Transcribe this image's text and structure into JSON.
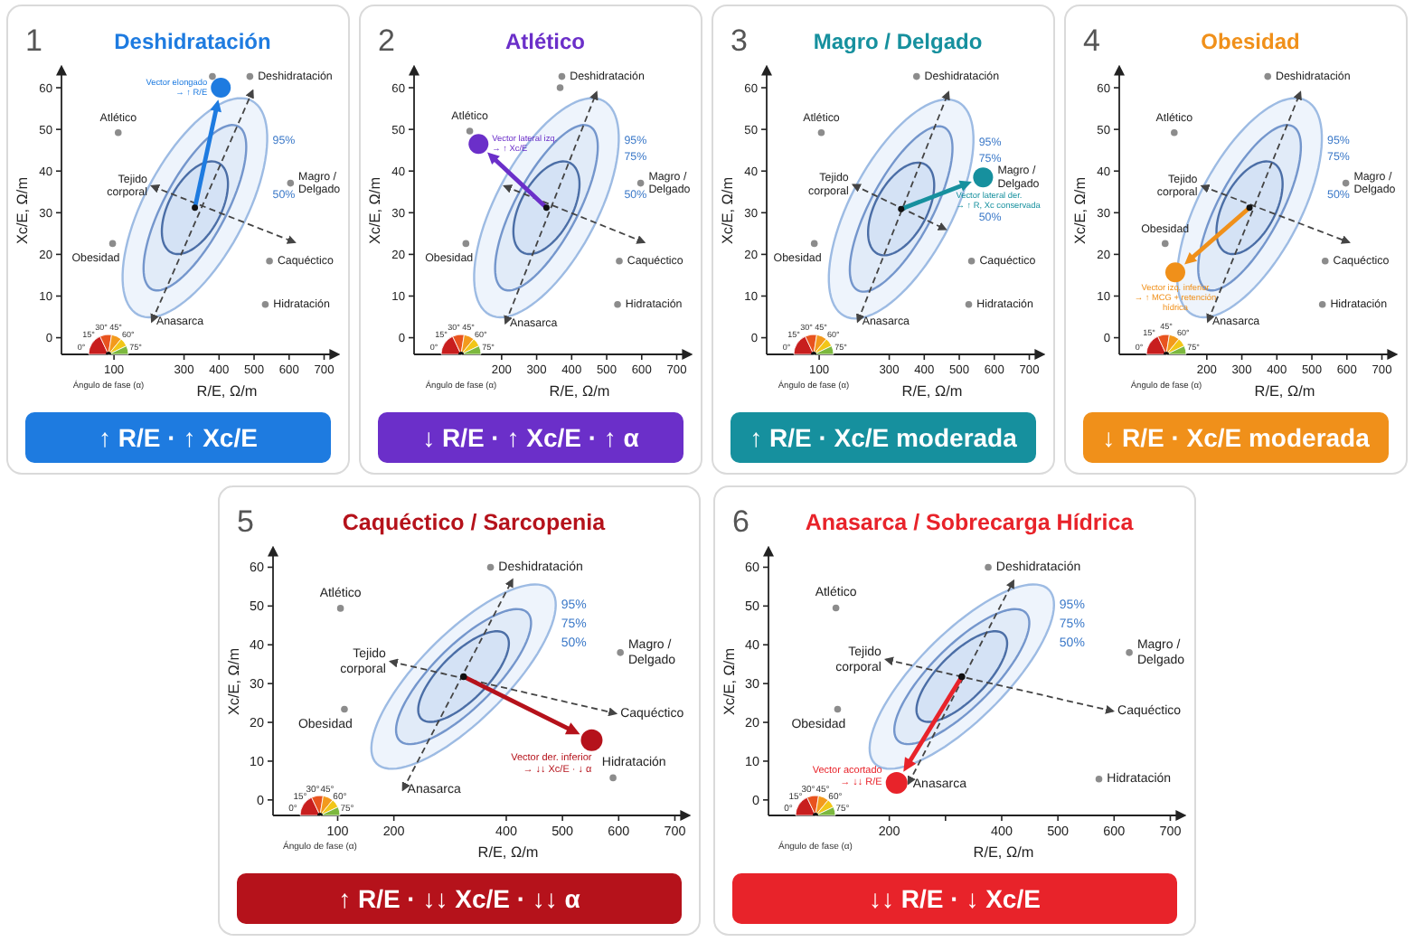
{
  "chart_data": [
    {
      "type": "scatter",
      "title": "Deshidratación",
      "subtitle": "↑ R/E · ↑ Xc/E",
      "xlabel": "R/E, Ω/m",
      "ylabel": "Xc/E, Ω/m",
      "xlim": [
        -50,
        740
      ],
      "ylim": [
        -4,
        65
      ],
      "xticks": [
        100,
        300,
        400,
        500,
        600,
        700
      ],
      "yticks": [
        0,
        10,
        20,
        30,
        40,
        50,
        60
      ],
      "series": [
        {
          "type": "line",
          "line_style": "dashed",
          "color": "#444444",
          "x": [
            208,
            496
          ],
          "values": [
            3.9,
            59.3
          ]
        },
        {
          "type": "line",
          "line_style": "dashed",
          "color": "#444444",
          "x": [
            208,
            616
          ],
          "values": [
            36.4,
            22.9
          ]
        },
        {
          "name": "Deshidratación",
          "color": "#8c8c8c",
          "x": [
            488
          ],
          "values": [
            62.7
          ]
        },
        {
          "name": "Atlético",
          "color": "#8c8c8c",
          "x": [
            112
          ],
          "values": [
            49.2
          ]
        },
        {
          "name": "Magro / Delgado",
          "color": "#8c8c8c",
          "x": [
            604
          ],
          "values": [
            37.1
          ]
        },
        {
          "name": "Obesidad",
          "color": "#8c8c8c",
          "x": [
            96
          ],
          "values": [
            22.6
          ]
        },
        {
          "name": "Caquéctico",
          "color": "#8c8c8c",
          "x": [
            544
          ],
          "values": [
            18.4
          ]
        },
        {
          "name": "Hidratación",
          "color": "#8c8c8c",
          "x": [
            532
          ],
          "values": [
            8
          ]
        },
        {
          "color": "#8c8c8c",
          "x": [
            381
          ],
          "values": [
            62.7
          ]
        },
        {
          "type": "bubble",
          "colors": [
            "#111111",
            "#1e7be0"
          ],
          "x": [
            331,
            405
          ],
          "values": [
            31.2,
            60
          ],
          "sizes": [
            0.1,
            1
          ]
        }
      ],
      "annotations": [
        "1",
        "0°",
        "15°",
        "30°",
        "45°",
        "60°",
        "75°",
        "Ángulo de fase (α)",
        "95%",
        "50%",
        {
          "text": "Tejido corporal",
          "x": 208,
          "y": 36.4
        },
        {
          "text": "Anasarca",
          "x": 208,
          "y": 3.9
        },
        {
          "text": "Vector elongado → ↑ R/E",
          "x": 405,
          "y": 60
        }
      ]
    },
    {
      "type": "scatter",
      "title": "Atlético",
      "subtitle": "↓ R/E · ↑ Xc/E · ↑ α",
      "xlabel": "R/E, Ω/m",
      "ylabel": "Xc/E, Ω/m",
      "xlim": [
        -50,
        740
      ],
      "ylim": [
        -4,
        65
      ],
      "xticks": [
        200,
        300,
        400,
        500,
        600,
        700
      ],
      "yticks": [
        0,
        10,
        20,
        30,
        40,
        50,
        60
      ],
      "series": [
        {
          "type": "line",
          "line_style": "dashed",
          "color": "#444444",
          "x": [
            211,
            471
          ],
          "values": [
            3.5,
            58.9
          ]
        },
        {
          "type": "line",
          "line_style": "dashed",
          "color": "#444444",
          "x": [
            208,
            607
          ],
          "values": [
            36.4,
            22.9
          ]
        },
        {
          "name": "Deshidratación",
          "color": "#8c8c8c",
          "x": [
            372
          ],
          "values": [
            62.7
          ]
        },
        {
          "name": "Atlético",
          "color": "#8c8c8c",
          "x": [
            109
          ],
          "values": [
            49.6
          ]
        },
        {
          "name": "Magro / Delgado",
          "color": "#8c8c8c",
          "x": [
            597
          ],
          "values": [
            37.1
          ]
        },
        {
          "name": "Obesidad",
          "color": "#8c8c8c",
          "x": [
            98
          ],
          "values": [
            22.6
          ]
        },
        {
          "name": "Caquéctico",
          "color": "#8c8c8c",
          "x": [
            536
          ],
          "values": [
            18.4
          ]
        },
        {
          "name": "Hidratación",
          "color": "#8c8c8c",
          "x": [
            531
          ],
          "values": [
            8
          ]
        },
        {
          "color": "#8c8c8c",
          "x": [
            367
          ],
          "values": [
            60
          ]
        },
        {
          "type": "bubble",
          "colors": [
            "#111111",
            "#6b2fc9"
          ],
          "x": [
            328,
            134
          ],
          "values": [
            31.2,
            46.5
          ],
          "sizes": [
            0.1,
            1
          ]
        }
      ],
      "annotations": [
        "2",
        "0°",
        "15°",
        "30°",
        "45°",
        "60°",
        "75°",
        "Ángulo de fase (α)",
        "95%",
        "75%",
        "50%",
        {
          "text": "Anasarca",
          "x": 211,
          "y": 3.5
        },
        {
          "text": "Vector lateral izq. → ↑ Xc/E",
          "x": 134,
          "y": 46.5
        }
      ]
    },
    {
      "type": "scatter",
      "title": "Magro / Delgado",
      "subtitle": "↑ R/E · Xc/E moderada",
      "xlabel": "R/E, Ω/m",
      "ylabel": "Xc/E, Ω/m",
      "xlim": [
        -50,
        740
      ],
      "ylim": [
        -4,
        65
      ],
      "xticks": [
        100,
        300,
        400,
        500,
        600,
        700
      ],
      "yticks": [
        0,
        10,
        20,
        30,
        40,
        50,
        60
      ],
      "series": [
        {
          "type": "line",
          "line_style": "dashed",
          "color": "#444444",
          "x": [
            210,
            469
          ],
          "values": [
            3.9,
            58.9
          ]
        },
        {
          "type": "line",
          "line_style": "dashed",
          "color": "#444444",
          "x": [
            197,
            461
          ],
          "values": [
            36.7,
            26
          ]
        },
        {
          "name": "Deshidratación",
          "color": "#8c8c8c",
          "x": [
            378
          ],
          "values": [
            62.7
          ]
        },
        {
          "name": "Atlético",
          "color": "#8c8c8c",
          "x": [
            106
          ],
          "values": [
            49.2
          ]
        },
        {
          "name": "Obesidad",
          "color": "#8c8c8c",
          "x": [
            86
          ],
          "values": [
            22.6
          ]
        },
        {
          "name": "Caquéctico",
          "color": "#8c8c8c",
          "x": [
            535
          ],
          "values": [
            18.4
          ]
        },
        {
          "name": "Hidratación",
          "color": "#8c8c8c",
          "x": [
            527
          ],
          "values": [
            8
          ]
        },
        {
          "type": "bubble",
          "colors": [
            "#111111",
            "#16909e"
          ],
          "x": [
            334,
            568
          ],
          "values": [
            30.9,
            38.5
          ],
          "sizes": [
            0.1,
            1
          ]
        }
      ],
      "annotations": [
        "3",
        "0°",
        "15°",
        "30°",
        "45°",
        "60°",
        "75°",
        "Ángulo de fase (α)",
        "95%",
        "75%",
        "50%",
        {
          "text": "Tejido corporal",
          "x": 197,
          "y": 36.7
        },
        {
          "text": "Anasarca",
          "x": 210,
          "y": 3.9
        },
        {
          "text": "Magro / Delgado",
          "x": 568,
          "y": 38.5
        },
        {
          "text": "Vector lateral der. → ↑ R, Xc conservada",
          "x": 568,
          "y": 38.5
        }
      ]
    },
    {
      "type": "scatter",
      "title": "Obesidad",
      "subtitle": "↓ R/E · Xc/E moderada",
      "xlabel": "R/E, Ω/m",
      "ylabel": "Xc/E, Ω/m",
      "xlim": [
        -50,
        740
      ],
      "ylim": [
        -4,
        65
      ],
      "xticks": [
        200,
        300,
        400,
        500,
        600,
        700
      ],
      "yticks": [
        0,
        10,
        20,
        30,
        40,
        50,
        60
      ],
      "series": [
        {
          "type": "line",
          "line_style": "dashed",
          "color": "#444444",
          "x": [
            203,
            467
          ],
          "values": [
            3.9,
            58.9
          ]
        },
        {
          "type": "line",
          "line_style": "dashed",
          "color": "#444444",
          "x": [
            186,
            606
          ],
          "values": [
            36.4,
            22.9
          ]
        },
        {
          "name": "Deshidratación",
          "color": "#8c8c8c",
          "x": [
            374
          ],
          "values": [
            62.7
          ]
        },
        {
          "name": "Atlético",
          "color": "#8c8c8c",
          "x": [
            107
          ],
          "values": [
            49.2
          ]
        },
        {
          "name": "Magro / Delgado",
          "color": "#8c8c8c",
          "x": [
            597
          ],
          "values": [
            37.1
          ]
        },
        {
          "name": "Obesidad",
          "color": "#8c8c8c",
          "x": [
            81
          ],
          "values": [
            22.6
          ]
        },
        {
          "name": "Caquéctico",
          "color": "#8c8c8c",
          "x": [
            538
          ],
          "values": [
            18.4
          ]
        },
        {
          "name": "Hidratación",
          "color": "#8c8c8c",
          "x": [
            530
          ],
          "values": [
            8
          ]
        },
        {
          "type": "bubble",
          "colors": [
            "#111111",
            "#f0901a"
          ],
          "x": [
            322,
            110
          ],
          "values": [
            31.2,
            15.7
          ],
          "sizes": [
            0.1,
            1
          ]
        }
      ],
      "annotations": [
        "4",
        "0°",
        "15°",
        "45°",
        "60°",
        "75°",
        "Ángulo de fase (α)",
        "95%",
        "75%",
        "50%",
        {
          "text": "Tejido corporal",
          "x": 186,
          "y": 36.4
        },
        {
          "text": "Anasarca",
          "x": 203,
          "y": 3.9
        },
        {
          "text": "Vector izq. inferior → ↑ MCG + retención hídrica",
          "x": 110,
          "y": 15.7
        }
      ]
    },
    {
      "type": "scatter",
      "title": "Caquéctico / Sarcopenia",
      "subtitle": "↑ R/E · ↓↓ Xc/E · ↓↓ α",
      "xlabel": "R/E, Ω/m",
      "ylabel": "Xc/E, Ω/m",
      "xlim": [
        -15,
        725
      ],
      "ylim": [
        -4,
        65
      ],
      "xticks": [
        100,
        200,
        400,
        500,
        600,
        700
      ],
      "yticks": [
        0,
        10,
        20,
        30,
        40,
        50,
        60
      ],
      "series": [
        {
          "type": "line",
          "line_style": "dashed",
          "color": "#444444",
          "x": [
            216,
            411
          ],
          "values": [
            2.6,
            56.8
          ]
        },
        {
          "type": "line",
          "line_style": "dashed",
          "color": "#444444",
          "x": [
            194,
            595
          ],
          "values": [
            35.7,
            22.3
          ]
        },
        {
          "name": "Deshidratación",
          "color": "#8c8c8c",
          "x": [
            372
          ],
          "values": [
            60
          ]
        },
        {
          "name": "Atlético",
          "color": "#8c8c8c",
          "x": [
            105
          ],
          "values": [
            49.4
          ]
        },
        {
          "name": "Magro / Delgado",
          "color": "#8c8c8c",
          "x": [
            603
          ],
          "values": [
            38
          ]
        },
        {
          "name": "Obesidad",
          "color": "#8c8c8c",
          "x": [
            112
          ],
          "values": [
            23.4
          ]
        },
        {
          "name": "Hidratación",
          "color": "#8c8c8c",
          "x": [
            590
          ],
          "values": [
            5.7
          ]
        },
        {
          "type": "bubble",
          "colors": [
            "#111111",
            "#b5121b"
          ],
          "x": [
            324,
            552
          ],
          "values": [
            31.8,
            15.4
          ],
          "sizes": [
            0.1,
            1
          ]
        }
      ],
      "annotations": [
        "5",
        "0°",
        "15°",
        "30°",
        "45°",
        "60°",
        "75°",
        "Ángulo de fase (α)",
        "95%",
        "75%",
        "50%",
        {
          "text": "Tejido corporal",
          "x": 194,
          "y": 35.7
        },
        {
          "text": "Anasarca",
          "x": 216,
          "y": 2.6
        },
        {
          "text": "Caquéctico",
          "x": 595,
          "y": 22.3
        },
        {
          "text": "Vector der. inferior → ↓↓ Xc/E · ↓ α",
          "x": 552,
          "y": 15.4
        }
      ]
    },
    {
      "type": "scatter",
      "title": "Anasarca / Sobrecarga Hídrica",
      "subtitle": "↓↓ R/E · ↓ Xc/E",
      "xlabel": "R/E, Ω/m",
      "ylabel": "Xc/E, Ω/m",
      "xlim": [
        -15,
        725
      ],
      "ylim": [
        -4,
        65
      ],
      "xticks": [
        200,
        {
          "value": 300,
          "label": null
        },
        400,
        500,
        600,
        700
      ],
      "yticks": [
        0,
        10,
        20,
        30,
        40,
        50,
        60
      ],
      "series": [
        {
          "type": "line",
          "line_style": "dashed",
          "color": "#444444",
          "x": [
            234,
            421
          ],
          "values": [
            4.2,
            56.5
          ]
        },
        {
          "type": "line",
          "line_style": "dashed",
          "color": "#444444",
          "x": [
            194,
            598
          ],
          "values": [
            36.2,
            22.9
          ]
        },
        {
          "name": "Deshidratación",
          "color": "#8c8c8c",
          "x": [
            376
          ],
          "values": [
            60
          ]
        },
        {
          "name": "Atlético",
          "color": "#8c8c8c",
          "x": [
            105
          ],
          "values": [
            49.5
          ]
        },
        {
          "name": "Magro / Delgado",
          "color": "#8c8c8c",
          "x": [
            627
          ],
          "values": [
            38
          ]
        },
        {
          "name": "Obesidad",
          "color": "#8c8c8c",
          "x": [
            108
          ],
          "values": [
            23.4
          ]
        },
        {
          "name": "Hidratación",
          "color": "#8c8c8c",
          "x": [
            573
          ],
          "values": [
            5.4
          ]
        },
        {
          "type": "bubble",
          "colors": [
            "#111111",
            "#e8232a"
          ],
          "x": [
            329,
            213
          ],
          "values": [
            31.8,
            4.4
          ],
          "sizes": [
            0.1,
            1
          ]
        }
      ],
      "annotations": [
        "6",
        "0°",
        "15°",
        "30°",
        "45°",
        "60°",
        "75°",
        "Ángulo de fase (α)",
        "95%",
        "75%",
        "50%",
        {
          "text": "Tejido corporal",
          "x": 194,
          "y": 36.2
        },
        {
          "text": "Anasarca",
          "x": 234,
          "y": 4.2
        },
        {
          "text": "Caquéctico",
          "x": 598,
          "y": 22.9
        },
        {
          "text": "Vector acortado → ↓↓ R/E",
          "x": 213,
          "y": 4.4
        }
      ]
    }
  ]
}
